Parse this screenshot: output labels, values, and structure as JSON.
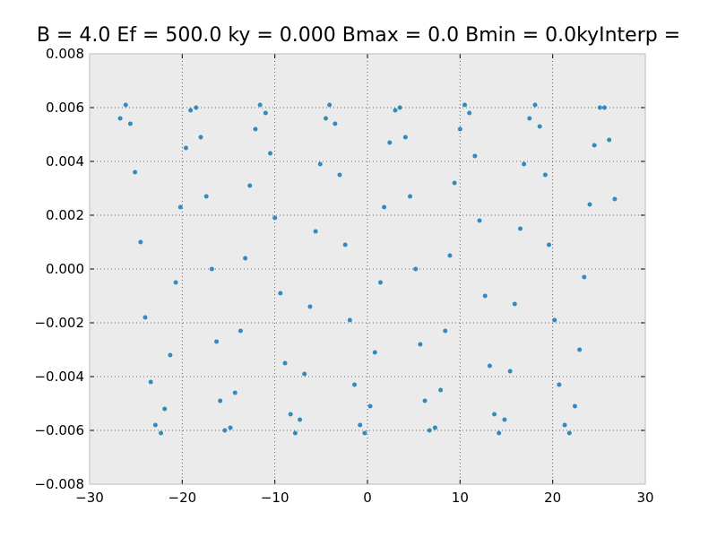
{
  "chart_data": {
    "type": "scatter",
    "title": "B = 4.0 Ef = 500.0 ky = 0.000 Bmax = 0.0 Bmin = 0.0kyInterp =",
    "color": "#348abd",
    "x": [
      -26.1,
      -26.7,
      -25.6,
      -25.1,
      -24.5,
      -24.0,
      -23.4,
      -22.9,
      -22.3,
      -21.9,
      -21.3,
      -20.7,
      -20.2,
      -19.6,
      -19.1,
      -18.5,
      -18.0,
      -17.4,
      -16.8,
      -16.3,
      -15.9,
      -15.4,
      -14.8,
      -14.3,
      -13.7,
      -13.2,
      -12.7,
      -12.1,
      -11.6,
      -11.0,
      -10.5,
      -10.0,
      -9.4,
      -8.9,
      -8.3,
      -7.8,
      -7.3,
      -6.8,
      -6.2,
      -5.6,
      -5.1,
      -4.5,
      -4.1,
      -3.5,
      -3.0,
      -2.4,
      -1.9,
      -1.4,
      -0.8,
      -0.3,
      0.3,
      0.8,
      1.4,
      1.8,
      2.4,
      3.0,
      3.5,
      4.1,
      4.6,
      5.2,
      5.7,
      6.2,
      6.7,
      7.3,
      7.9,
      8.4,
      8.9,
      9.4,
      10.0,
      10.5,
      11.0,
      11.6,
      12.1,
      12.7,
      13.2,
      13.7,
      14.2,
      14.8,
      15.4,
      15.9,
      16.5,
      16.9,
      17.5,
      18.1,
      18.6,
      19.2,
      19.6,
      20.2,
      20.7,
      21.3,
      21.8,
      22.4,
      22.9,
      23.4,
      24.0,
      24.5,
      25.1,
      25.6,
      26.1,
      26.7
    ],
    "values": [
      0.0061,
      0.0056,
      0.0054,
      0.0036,
      0.001,
      -0.0018,
      -0.0042,
      -0.0058,
      -0.0061,
      -0.0052,
      -0.0032,
      -0.0005,
      0.0023,
      0.0045,
      0.0059,
      0.006,
      0.0049,
      0.0027,
      0,
      -0.0027,
      -0.0049,
      -0.006,
      -0.0059,
      -0.0046,
      -0.0023,
      0.0004,
      0.0031,
      0.0052,
      0.0061,
      0.0058,
      0.0043,
      0.0019,
      -0.0009,
      -0.0035,
      -0.0054,
      -0.0061,
      -0.0056,
      -0.0039,
      -0.0014,
      0.0014,
      0.0039,
      0.0056,
      0.0061,
      0.0054,
      0.0035,
      0.0009,
      -0.0019,
      -0.0043,
      -0.0058,
      -0.0061,
      -0.0051,
      -0.0031,
      -0.0005,
      0.0023,
      0.0047,
      0.0059,
      0.006,
      0.0049,
      0.0027,
      0,
      -0.0028,
      -0.0049,
      -0.006,
      -0.0059,
      -0.0045,
      -0.0023,
      0.0005,
      0.0032,
      0.0052,
      0.0061,
      0.0058,
      0.0042,
      0.0018,
      -0.001,
      -0.0036,
      -0.0054,
      -0.0061,
      -0.0056,
      -0.0038,
      -0.0013,
      0.0015,
      0.0039,
      0.0056,
      0.0061,
      0.0053,
      0.0035,
      0.0009,
      -0.0019,
      -0.0043,
      -0.0058,
      -0.0061,
      -0.0051,
      -0.003,
      -0.0003,
      0.0024,
      0.0046,
      0.006,
      0.006,
      0.0048,
      0.0026
    ],
    "xlim": [
      -30,
      30
    ],
    "xticks": [
      {
        "value": -30,
        "label": "−30"
      },
      {
        "value": -20,
        "label": "−20"
      },
      {
        "value": -10,
        "label": "−10"
      },
      0,
      10,
      20,
      30
    ],
    "ylim": [
      -0.008,
      0.008
    ],
    "yticks": [
      {
        "value": -0.008,
        "label": "−0.008"
      },
      {
        "value": -0.006,
        "label": "−0.006"
      },
      {
        "value": -0.004,
        "label": "−0.004"
      },
      {
        "value": -0.002,
        "label": "−0.002"
      },
      {
        "value": 0,
        "label": "0.000"
      },
      0.002,
      0.004,
      0.006,
      0.008
    ],
    "grid": true
  }
}
